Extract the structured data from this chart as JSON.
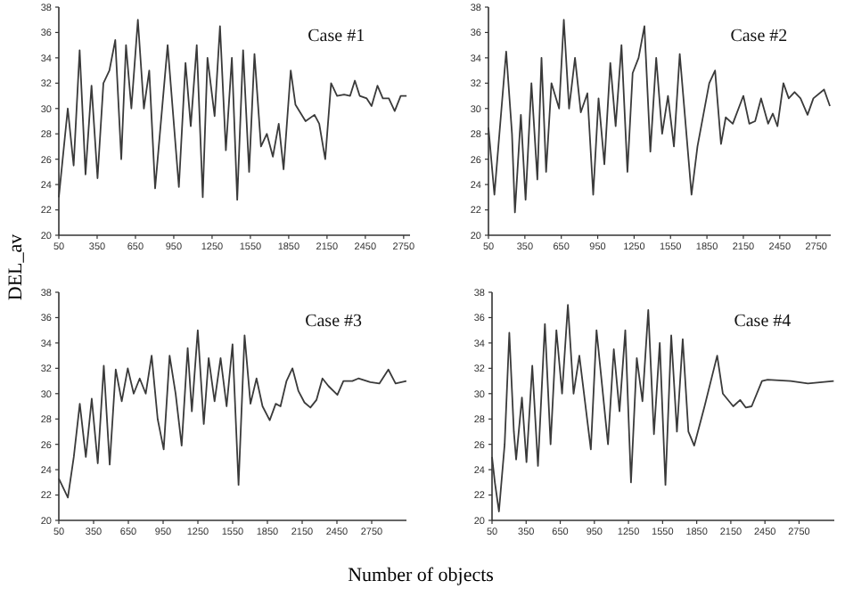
{
  "chart_data": [
    {
      "type": "line",
      "title": "Case #1",
      "ylabel": "DEL_av",
      "xlim": [
        50,
        2800
      ],
      "xticks": [
        50,
        350,
        650,
        950,
        1250,
        1550,
        1850,
        2150,
        2450,
        2750
      ],
      "ylim": [
        20,
        38
      ],
      "yticks": [
        20,
        22,
        24,
        26,
        28,
        30,
        32,
        34,
        36,
        38
      ],
      "grid": false,
      "marker": "none",
      "line_style": "solid",
      "series": [
        {
          "color": "#3a3a3a",
          "x": [
            50,
            120,
            166,
            213,
            259,
            306,
            353,
            399,
            446,
            492,
            539,
            576,
            618,
            669,
            716,
            758,
            804,
            902,
            990,
            1042,
            1083,
            1130,
            1177,
            1214,
            1270,
            1312,
            1358,
            1405,
            1447,
            1493,
            1540,
            1582,
            1633,
            1679,
            1726,
            1772,
            1810,
            1866,
            1903,
            1982,
            2052,
            2089,
            2136,
            2182,
            2229,
            2284,
            2331,
            2368,
            2406,
            2461,
            2499,
            2545,
            2587,
            2634,
            2680,
            2727,
            2773
          ],
          "values": [
            23,
            30,
            25.5,
            34.6,
            24.8,
            31.8,
            24.5,
            32,
            33,
            35.4,
            26,
            35,
            30,
            37,
            30,
            33,
            23.7,
            35,
            23.8,
            33.6,
            28.6,
            35,
            23,
            34,
            29.4,
            36.5,
            26.7,
            34,
            22.8,
            34.6,
            25,
            34.3,
            27,
            28,
            26.2,
            28.8,
            25.2,
            33,
            30.3,
            29,
            29.5,
            28.8,
            26,
            32,
            31,
            31.1,
            31,
            32.2,
            31,
            30.8,
            30.2,
            31.8,
            30.8,
            30.8,
            29.8,
            31,
            31
          ]
        }
      ]
    },
    {
      "type": "line",
      "title": "Case #2",
      "xlim": [
        50,
        2870
      ],
      "xticks": [
        50,
        350,
        650,
        950,
        1250,
        1550,
        1850,
        2150,
        2450,
        2750
      ],
      "ylim": [
        20,
        38
      ],
      "yticks": [
        20,
        22,
        24,
        26,
        28,
        30,
        32,
        34,
        36,
        38
      ],
      "grid": false,
      "marker": "none",
      "line_style": "solid",
      "series": [
        {
          "color": "#3a3a3a",
          "x": [
            50,
            99,
            196,
            244,
            268,
            317,
            356,
            404,
            453,
            487,
            525,
            569,
            632,
            671,
            714,
            763,
            811,
            865,
            913,
            957,
            1005,
            1054,
            1098,
            1146,
            1195,
            1238,
            1287,
            1335,
            1384,
            1432,
            1481,
            1529,
            1578,
            1626,
            1723,
            1772,
            1869,
            1917,
            1966,
            2005,
            2063,
            2150,
            2199,
            2247,
            2296,
            2354,
            2393,
            2431,
            2480,
            2524,
            2572,
            2621,
            2679,
            2727,
            2815,
            2863
          ],
          "values": [
            28.5,
            23.2,
            34.5,
            28,
            21.8,
            29.5,
            22.8,
            32,
            24.4,
            34,
            25,
            32,
            30,
            37,
            30,
            34,
            29.7,
            31.2,
            23.2,
            30.8,
            25.6,
            33.6,
            28.6,
            35,
            25,
            32.8,
            34,
            36.5,
            26.6,
            34,
            28,
            31,
            27,
            34.3,
            23.2,
            27,
            32,
            33,
            27.2,
            29.3,
            28.8,
            31,
            28.8,
            29,
            30.8,
            28.8,
            29.6,
            28.6,
            32,
            30.8,
            31.3,
            30.8,
            29.5,
            30.8,
            31.5,
            30.2
          ]
        }
      ]
    },
    {
      "type": "line",
      "title": "Case #3",
      "xlabel": "Number of objects",
      "xlim": [
        50,
        3050
      ],
      "xticks": [
        50,
        350,
        650,
        950,
        1250,
        1550,
        1850,
        2150,
        2450,
        2750
      ],
      "ylim": [
        20,
        38
      ],
      "yticks": [
        20,
        22,
        24,
        26,
        28,
        30,
        32,
        34,
        36,
        38
      ],
      "grid": false,
      "marker": "none",
      "line_style": "solid",
      "series": [
        {
          "color": "#3a3a3a",
          "x": [
            50,
            128,
            179,
            231,
            283,
            334,
            386,
            438,
            489,
            541,
            593,
            645,
            696,
            748,
            800,
            851,
            903,
            955,
            1006,
            1058,
            1110,
            1162,
            1198,
            1249,
            1301,
            1343,
            1394,
            1446,
            1498,
            1549,
            1601,
            1653,
            1704,
            1756,
            1808,
            1870,
            1922,
            1963,
            2015,
            2066,
            2118,
            2170,
            2221,
            2273,
            2325,
            2377,
            2454,
            2506,
            2583,
            2635,
            2738,
            2816,
            2894,
            2956,
            3049
          ],
          "values": [
            23.3,
            21.8,
            25,
            29.2,
            25,
            29.6,
            24.5,
            32.2,
            24.4,
            31.9,
            29.4,
            32,
            30,
            31.2,
            30,
            33,
            28,
            25.6,
            33,
            30,
            25.9,
            33.6,
            28.6,
            35,
            27.6,
            32.8,
            29.4,
            32.8,
            29,
            33.9,
            22.8,
            34.6,
            29.2,
            31.2,
            29,
            27.9,
            29.2,
            29,
            31,
            32,
            30.2,
            29.3,
            28.9,
            29.5,
            31.2,
            30.6,
            29.9,
            31,
            31,
            31.2,
            30.9,
            30.8,
            31.9,
            30.8,
            31
          ]
        }
      ]
    },
    {
      "type": "line",
      "title": "Case #4",
      "xlim": [
        50,
        3060
      ],
      "xticks": [
        50,
        350,
        650,
        950,
        1250,
        1550,
        1850,
        2150,
        2450,
        2750
      ],
      "ylim": [
        20,
        38
      ],
      "yticks": [
        20,
        22,
        24,
        26,
        28,
        30,
        32,
        34,
        36,
        38
      ],
      "grid": false,
      "marker": "none",
      "line_style": "solid",
      "series": [
        {
          "color": "#3a3a3a",
          "x": [
            50,
            75,
            111,
            161,
            202,
            242,
            262,
            313,
            353,
            404,
            454,
            515,
            565,
            616,
            666,
            717,
            767,
            818,
            919,
            969,
            1070,
            1121,
            1171,
            1222,
            1272,
            1323,
            1373,
            1424,
            1474,
            1525,
            1575,
            1626,
            1676,
            1727,
            1777,
            1828,
            1919,
            2030,
            2080,
            2171,
            2232,
            2282,
            2333,
            2424,
            2474,
            2676,
            2828,
            3055
          ],
          "values": [
            25,
            23,
            20.7,
            26,
            34.8,
            27,
            24.8,
            29.7,
            24.6,
            32.2,
            24.3,
            35.5,
            26,
            35,
            30,
            37,
            30,
            33,
            25.6,
            35,
            26,
            33.5,
            28.6,
            35,
            23,
            32.8,
            29.4,
            36.6,
            26.8,
            34,
            22.8,
            34.6,
            27,
            34.3,
            27,
            25.9,
            29,
            33,
            30,
            29,
            29.5,
            28.9,
            29,
            31,
            31.1,
            31,
            30.8,
            31
          ]
        }
      ]
    }
  ]
}
